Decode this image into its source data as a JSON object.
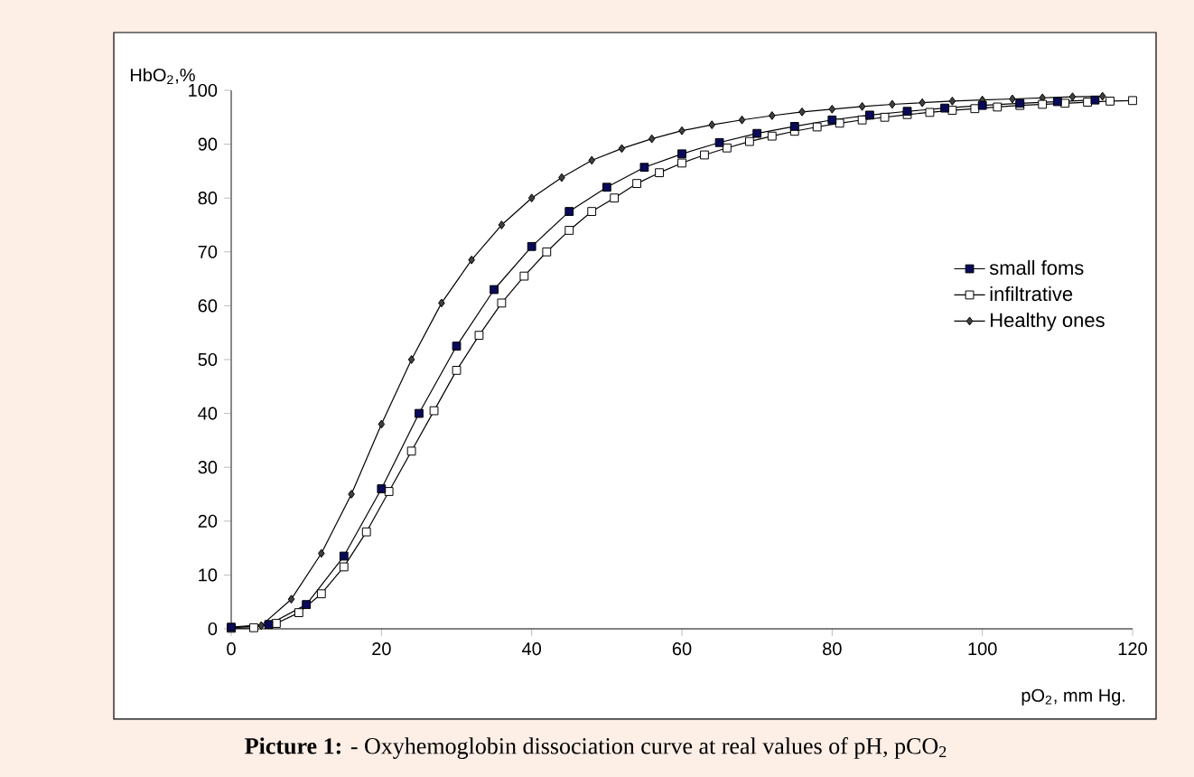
{
  "chart_data": {
    "type": "line",
    "ylabel": "HbO$_{2}$,%",
    "xlabel": "pO$_{2}$, mm Hg.",
    "annotations": [
      "**Picture 1:** - Oxyhemoglobin dissociation curve at real values of pH, pCO$_{2}$"
    ],
    "xlim": [
      0,
      120
    ],
    "ylim": [
      0,
      100
    ],
    "xticks": [
      0,
      20,
      40,
      60,
      80,
      100,
      120
    ],
    "yticks": [
      0,
      10,
      20,
      30,
      40,
      50,
      60,
      70,
      80,
      90,
      100
    ],
    "grid": false,
    "legend": "right",
    "series": [
      {
        "name": "small foms",
        "color": "#0a0a5a",
        "marker": "square",
        "x": [
          0,
          5,
          10,
          15,
          20,
          25,
          30,
          35,
          40,
          45,
          50,
          55,
          60,
          65,
          70,
          75,
          80,
          85,
          90,
          95,
          100,
          105,
          110,
          115
        ],
        "values": [
          0.3,
          0.8,
          4.5,
          13.5,
          26,
          40,
          52.5,
          63,
          71,
          77.5,
          82,
          85.7,
          88.2,
          90.3,
          92,
          93.3,
          94.5,
          95.4,
          96.1,
          96.7,
          97.2,
          97.6,
          97.9,
          98.2
        ]
      },
      {
        "name": "infiltrative",
        "color": "#ffffff",
        "marker": "square",
        "x": [
          0,
          3,
          6,
          9,
          12,
          15,
          18,
          21,
          24,
          27,
          30,
          33,
          36,
          39,
          42,
          45,
          48,
          51,
          54,
          57,
          60,
          63,
          66,
          69,
          72,
          75,
          78,
          81,
          84,
          87,
          90,
          93,
          96,
          99,
          102,
          105,
          108,
          111,
          114,
          117,
          120
        ],
        "values": [
          0.1,
          0.2,
          1,
          3,
          6.5,
          11.5,
          18,
          25.5,
          33,
          40.5,
          48,
          54.5,
          60.5,
          65.5,
          70,
          74,
          77.5,
          80,
          82.7,
          84.7,
          86.5,
          88,
          89.3,
          90.5,
          91.5,
          92.4,
          93.2,
          93.9,
          94.5,
          95,
          95.5,
          95.9,
          96.3,
          96.6,
          96.9,
          97.2,
          97.4,
          97.6,
          97.8,
          98,
          98.1
        ]
      },
      {
        "name": "Healthy ones",
        "color": "#404040",
        "marker": "diamond",
        "x": [
          0,
          4,
          8,
          12,
          16,
          20,
          24,
          28,
          32,
          36,
          40,
          44,
          48,
          52,
          56,
          60,
          64,
          68,
          72,
          76,
          80,
          84,
          88,
          92,
          96,
          100,
          104,
          108,
          112,
          116
        ],
        "values": [
          0.2,
          0.6,
          5.5,
          14,
          25,
          38,
          50,
          60.5,
          68.5,
          75,
          80,
          83.8,
          87,
          89.2,
          91,
          92.5,
          93.6,
          94.5,
          95.3,
          96,
          96.5,
          97,
          97.4,
          97.7,
          98,
          98.2,
          98.4,
          98.6,
          98.8,
          98.9
        ]
      }
    ]
  }
}
